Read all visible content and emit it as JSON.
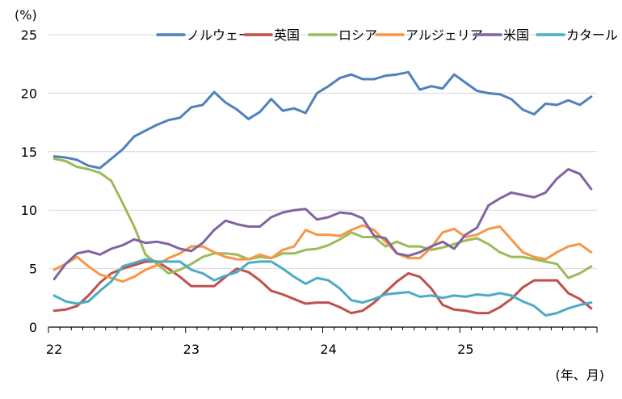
{
  "chart_data": {
    "type": "line",
    "title": "",
    "ylabel": "(%)",
    "xlabel": "(年、月)",
    "ylim": [
      0,
      25
    ],
    "yticks": [
      "0",
      "5",
      "10",
      "15",
      "20",
      "25"
    ],
    "grid": true,
    "legend_position": "top-right",
    "x_start": "2022-01",
    "x_end": "2025-12",
    "x_frequency": "monthly",
    "year_labels": [
      "22",
      "23",
      "24",
      "25"
    ],
    "series": [
      {
        "name": "ノルウェー",
        "color": "#4f81bd",
        "values": [
          14.6,
          14.5,
          14.3,
          13.8,
          13.6,
          14.4,
          15.2,
          16.3,
          16.8,
          17.3,
          17.7,
          17.9,
          18.8,
          19.0,
          20.1,
          19.2,
          18.6,
          17.8,
          18.4,
          19.5,
          18.5,
          18.7,
          18.3,
          20.0,
          20.6,
          21.3,
          21.6,
          21.2,
          21.2,
          21.5,
          21.6,
          21.8,
          20.3,
          20.6,
          20.4,
          21.6,
          20.9,
          20.2,
          20.0,
          19.9,
          19.5,
          18.6,
          18.2,
          19.1,
          19.0,
          19.4,
          19.0,
          19.7
        ]
      },
      {
        "name": "英国",
        "color": "#c0504d",
        "values": [
          1.4,
          1.5,
          1.8,
          2.7,
          3.8,
          4.6,
          5.0,
          5.3,
          5.6,
          5.6,
          5.0,
          4.3,
          3.5,
          3.5,
          3.5,
          4.3,
          5.0,
          4.7,
          4.0,
          3.1,
          2.8,
          2.4,
          2.0,
          2.1,
          2.1,
          1.7,
          1.2,
          1.4,
          2.1,
          3.0,
          3.9,
          4.6,
          4.3,
          3.3,
          1.9,
          1.5,
          1.4,
          1.2,
          1.2,
          1.7,
          2.4,
          3.4,
          4.0,
          4.0,
          4.0,
          2.9,
          2.4,
          1.6
        ]
      },
      {
        "name": "ロシア",
        "color": "#9bbb59",
        "values": [
          14.4,
          14.2,
          13.7,
          13.5,
          13.2,
          12.5,
          10.6,
          8.6,
          6.2,
          5.4,
          4.6,
          4.9,
          5.4,
          6.0,
          6.3,
          6.3,
          6.2,
          5.8,
          6.0,
          5.9,
          6.3,
          6.3,
          6.6,
          6.7,
          7.0,
          7.5,
          8.1,
          7.7,
          7.7,
          6.9,
          7.3,
          6.9,
          6.9,
          6.6,
          6.8,
          7.1,
          7.4,
          7.6,
          7.1,
          6.4,
          6.0,
          6.0,
          5.8,
          5.6,
          5.4,
          4.2,
          4.6,
          5.2
        ]
      },
      {
        "name": "アルジェリア",
        "color": "#f79646",
        "values": [
          4.9,
          5.4,
          6.0,
          5.2,
          4.5,
          4.2,
          3.9,
          4.3,
          4.9,
          5.3,
          5.9,
          6.3,
          6.9,
          6.9,
          6.4,
          6.0,
          5.8,
          5.8,
          6.2,
          5.9,
          6.6,
          6.9,
          8.3,
          7.9,
          7.9,
          7.8,
          8.3,
          8.7,
          8.3,
          7.3,
          6.3,
          5.9,
          5.9,
          6.8,
          8.1,
          8.4,
          7.7,
          7.9,
          8.4,
          8.6,
          7.5,
          6.4,
          6.0,
          5.8,
          6.4,
          6.9,
          7.1,
          6.4
        ]
      },
      {
        "name": "米国",
        "color": "#8064a2",
        "values": [
          4.1,
          5.4,
          6.3,
          6.5,
          6.2,
          6.7,
          7.0,
          7.5,
          7.2,
          7.3,
          7.1,
          6.7,
          6.5,
          7.2,
          8.3,
          9.1,
          8.8,
          8.6,
          8.6,
          9.4,
          9.8,
          10.0,
          10.1,
          9.2,
          9.4,
          9.8,
          9.7,
          9.3,
          7.8,
          7.6,
          6.3,
          6.1,
          6.4,
          6.9,
          7.3,
          6.7,
          7.9,
          8.5,
          10.4,
          11.0,
          11.5,
          11.3,
          11.1,
          11.5,
          12.7,
          13.5,
          13.1,
          11.8
        ]
      },
      {
        "name": "カタール",
        "color": "#4bacc6",
        "values": [
          2.7,
          2.2,
          2.0,
          2.2,
          3.1,
          3.9,
          5.2,
          5.5,
          5.8,
          5.6,
          5.6,
          5.6,
          4.9,
          4.6,
          4.0,
          4.4,
          4.7,
          5.5,
          5.6,
          5.6,
          5.0,
          4.3,
          3.7,
          4.2,
          4.0,
          3.3,
          2.3,
          2.1,
          2.4,
          2.8,
          2.9,
          3.0,
          2.6,
          2.7,
          2.5,
          2.7,
          2.6,
          2.8,
          2.7,
          2.9,
          2.7,
          2.2,
          1.8,
          1.0,
          1.2,
          1.6,
          1.9,
          2.1
        ]
      }
    ]
  }
}
